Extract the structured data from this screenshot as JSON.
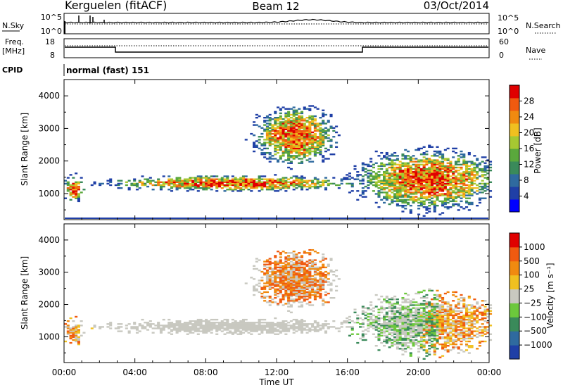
{
  "header": {
    "station": "Kerguelen (fitACF)",
    "beam": "Beam 12",
    "date": "03/Oct/2014"
  },
  "noise_panel": {
    "left_label": "N.Sky",
    "left_ticks": [
      "10^5",
      "10^0"
    ],
    "right_ticks": [
      "10^5",
      "10^0"
    ],
    "right_label": "N.Search"
  },
  "freq_panel": {
    "label_line1": "Freq.",
    "label_line2": "[MHz]",
    "left_ticks": [
      "18",
      "8"
    ],
    "right_ticks": [
      "60",
      "0"
    ],
    "right_label": "Nave"
  },
  "cpid": {
    "label": "CPID",
    "value": "normal (fast) 151"
  },
  "colors": {
    "power_scale": [
      "#0000ff",
      "#1f3fa6",
      "#2f6a9f",
      "#3a8a5a",
      "#5aa83c",
      "#a6c832",
      "#f0c020",
      "#f08a10",
      "#f05a10",
      "#e00000"
    ],
    "velocity_scale": [
      "#1f3fa6",
      "#2f6a9f",
      "#3a8a5a",
      "#6cc83c",
      "#c8c8c0",
      "#f0c020",
      "#f08a10",
      "#f05a10",
      "#e00000"
    ]
  },
  "chart_data": [
    {
      "type": "heatmap",
      "name": "power-panel",
      "ylabel": "Slant Range [km]",
      "yticks": [
        1000,
        2000,
        3000,
        4000
      ],
      "ylim": [
        200,
        4500
      ],
      "xlim": [
        0,
        24
      ],
      "colorbar": {
        "label": "Power [dB]",
        "ticks": [
          "4",
          "8",
          "12",
          "16",
          "20",
          "24",
          "28"
        ],
        "range": [
          0,
          30
        ]
      },
      "features": [
        {
          "label": "main echo band",
          "x": [
            3,
            16
          ],
          "y": [
            1100,
            1500
          ]
        },
        {
          "label": "morning echoes",
          "x": [
            0,
            1
          ],
          "y": [
            800,
            1500
          ]
        },
        {
          "label": "evening echoes",
          "x": [
            17,
            24
          ],
          "y": [
            600,
            2200
          ]
        },
        {
          "label": "high-range echoes",
          "x": [
            11,
            15
          ],
          "y": [
            2000,
            3500
          ]
        }
      ]
    },
    {
      "type": "heatmap",
      "name": "velocity-panel",
      "ylabel": "Slant Range [km]",
      "yticks": [
        1000,
        2000,
        3000,
        4000
      ],
      "ylim": [
        200,
        4500
      ],
      "xlim": [
        0,
        24
      ],
      "xlabel": "Time UT",
      "xticks": [
        "00:00",
        "04:00",
        "08:00",
        "12:00",
        "16:00",
        "20:00",
        "00:00"
      ],
      "colorbar": {
        "label": "Velocity [m s⁻¹]",
        "ticks": [
          "1000",
          "500",
          "100",
          "25",
          "−25",
          "−100",
          "−500",
          "−1000"
        ]
      }
    }
  ]
}
